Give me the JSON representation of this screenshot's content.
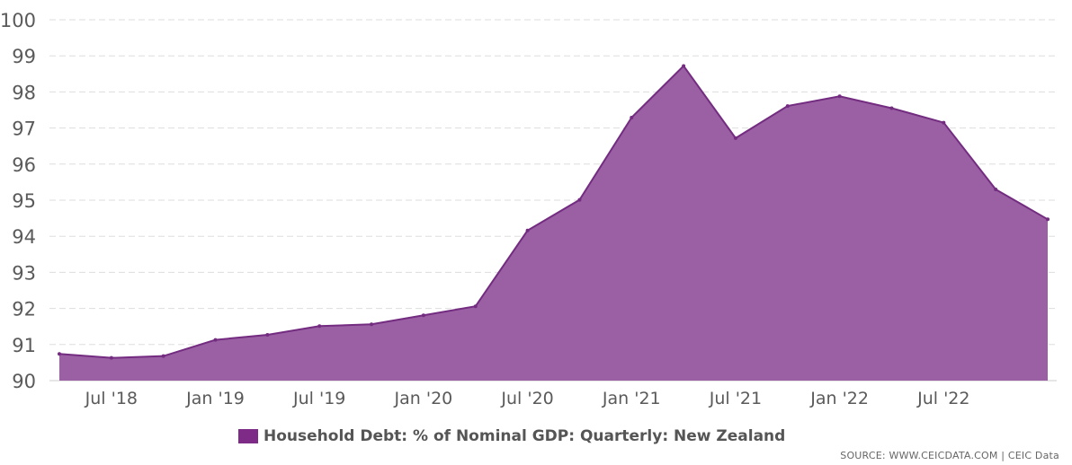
{
  "chart_data": {
    "type": "area",
    "x": [
      "Apr 2018",
      "Jul 2018",
      "Oct 2018",
      "Jan 2019",
      "Apr 2019",
      "Jul 2019",
      "Oct 2019",
      "Jan 2020",
      "Apr 2020",
      "Jul 2020",
      "Oct 2020",
      "Jan 2021",
      "Apr 2021",
      "Jul 2021",
      "Oct 2021",
      "Jan 2022",
      "Apr 2022",
      "Jul 2022",
      "Oct 2022",
      "Jan 2023"
    ],
    "series": [
      {
        "name": "Household Debt: % of Nominal GDP: Quarterly: New Zealand",
        "values": [
          90.74,
          90.63,
          90.68,
          91.13,
          91.27,
          91.51,
          91.56,
          91.81,
          92.06,
          94.16,
          95.01,
          97.29,
          98.72,
          96.72,
          97.61,
          97.88,
          97.55,
          97.15,
          95.3,
          94.47
        ]
      }
    ],
    "ylim": [
      90,
      100
    ],
    "yticks": [
      "90",
      "91",
      "92",
      "93",
      "94",
      "95",
      "96",
      "97",
      "98",
      "99",
      "100"
    ],
    "xtick_labels": [
      {
        "label": "Jul '18",
        "index": 1
      },
      {
        "label": "Jan '19",
        "index": 3
      },
      {
        "label": "Jul '19",
        "index": 5
      },
      {
        "label": "Jan '20",
        "index": 7
      },
      {
        "label": "Jul '20",
        "index": 9
      },
      {
        "label": "Jan '21",
        "index": 11
      },
      {
        "label": "Jul '21",
        "index": 13
      },
      {
        "label": "Jan '22",
        "index": 15
      },
      {
        "label": "Jul '22",
        "index": 17
      }
    ],
    "grid": true,
    "legend_position": "bottom-center"
  },
  "colors": {
    "area_fill": "#9a60a3",
    "line": "#732c80",
    "legend_swatch": "#7d2b87",
    "grid": "#dddddd"
  },
  "legend": {
    "label": "Household Debt: % of Nominal GDP: Quarterly: New Zealand"
  },
  "source": "SOURCE: WWW.CEICDATA.COM | CEIC Data"
}
